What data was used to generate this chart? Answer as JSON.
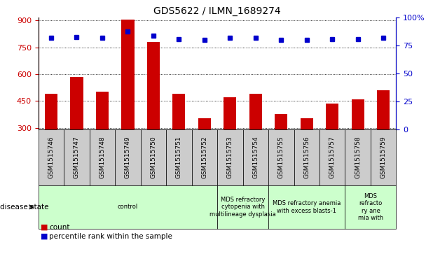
{
  "title": "GDS5622 / ILMN_1689274",
  "samples": [
    "GSM1515746",
    "GSM1515747",
    "GSM1515748",
    "GSM1515749",
    "GSM1515750",
    "GSM1515751",
    "GSM1515752",
    "GSM1515753",
    "GSM1515754",
    "GSM1515755",
    "GSM1515756",
    "GSM1515757",
    "GSM1515758",
    "GSM1515759"
  ],
  "counts": [
    490,
    585,
    500,
    905,
    780,
    490,
    355,
    470,
    490,
    375,
    355,
    435,
    460,
    510
  ],
  "percentile_ranks": [
    82,
    83,
    82,
    88,
    84,
    81,
    80,
    82,
    82,
    80,
    80,
    81,
    81,
    82
  ],
  "ylim_left": [
    290,
    915
  ],
  "ylim_right": [
    0,
    100
  ],
  "yticks_left": [
    300,
    450,
    600,
    750,
    900
  ],
  "yticks_right": [
    0,
    25,
    50,
    75,
    100
  ],
  "bar_color": "#cc0000",
  "dot_color": "#0000cc",
  "tick_bg_color": "#cccccc",
  "disease_groups": [
    {
      "label": "control",
      "start": 0,
      "end": 7
    },
    {
      "label": "MDS refractory\ncytopenia with\nmultilineage dysplasia",
      "start": 7,
      "end": 9
    },
    {
      "label": "MDS refractory anemia\nwith excess blasts-1",
      "start": 9,
      "end": 12
    },
    {
      "label": "MDS\nrefracto\nry ane\nmia with",
      "start": 12,
      "end": 14
    }
  ],
  "disease_group_color": "#ccffcc",
  "legend_count_color": "#cc0000",
  "legend_pct_color": "#0000cc",
  "bar_width": 0.5,
  "figsize": [
    6.08,
    3.63
  ],
  "dpi": 100
}
